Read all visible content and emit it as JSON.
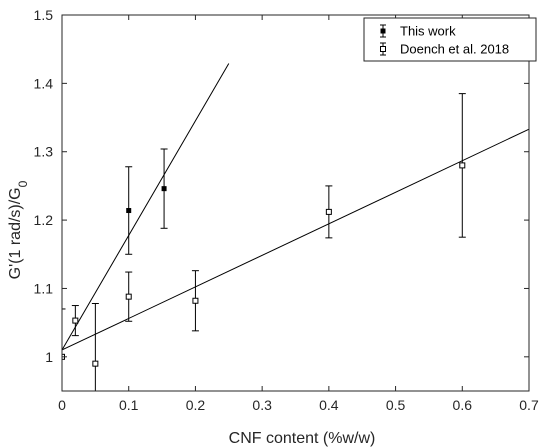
{
  "chart_data": {
    "type": "scatter",
    "xlabel": "CNF content (%w/w)",
    "ylabel_main": "G'(1 rad/s)/G",
    "ylabel_sub": "0",
    "xlim": [
      0,
      0.7
    ],
    "ylim": [
      0.95,
      1.5
    ],
    "xticks": [
      0,
      0.1,
      0.2,
      0.3,
      0.4,
      0.5,
      0.6,
      0.7
    ],
    "xtick_labels": [
      "0",
      "0.1",
      "0.2",
      "0.3",
      "0.4",
      "0.5",
      "0.6",
      "0.7"
    ],
    "yticks": [
      1.0,
      1.1,
      1.2,
      1.3,
      1.4,
      1.5
    ],
    "ytick_labels": [
      "1",
      "1.1",
      "1.2",
      "1.3",
      "1.4",
      "1.5"
    ],
    "grid": false,
    "legend_position": "top-right",
    "series": [
      {
        "name": "This work",
        "marker": "filled-square",
        "color": "#000000",
        "points": [
          {
            "x": 0.0,
            "y": 1.0,
            "err": 0.07
          },
          {
            "x": 0.1,
            "y": 1.214,
            "err": 0.064
          },
          {
            "x": 0.153,
            "y": 1.246,
            "err": 0.058
          }
        ],
        "fit": {
          "x": [
            0,
            0.25
          ],
          "y": [
            1.01,
            1.429
          ]
        }
      },
      {
        "name": "Doench et al. 2018",
        "marker": "open-square",
        "color": "#000000",
        "points": [
          {
            "x": 0.0,
            "y": 1.0,
            "err": 0.0
          },
          {
            "x": 0.02,
            "y": 1.053,
            "err": 0.022
          },
          {
            "x": 0.05,
            "y": 0.99,
            "err": 0.088
          },
          {
            "x": 0.1,
            "y": 1.088,
            "err": 0.036
          },
          {
            "x": 0.2,
            "y": 1.082,
            "err": 0.044
          },
          {
            "x": 0.4,
            "y": 1.212,
            "err": 0.038
          },
          {
            "x": 0.6,
            "y": 1.28,
            "err": 0.105
          }
        ],
        "fit": {
          "x": [
            0,
            0.7
          ],
          "y": [
            1.01,
            1.333
          ]
        }
      }
    ]
  }
}
